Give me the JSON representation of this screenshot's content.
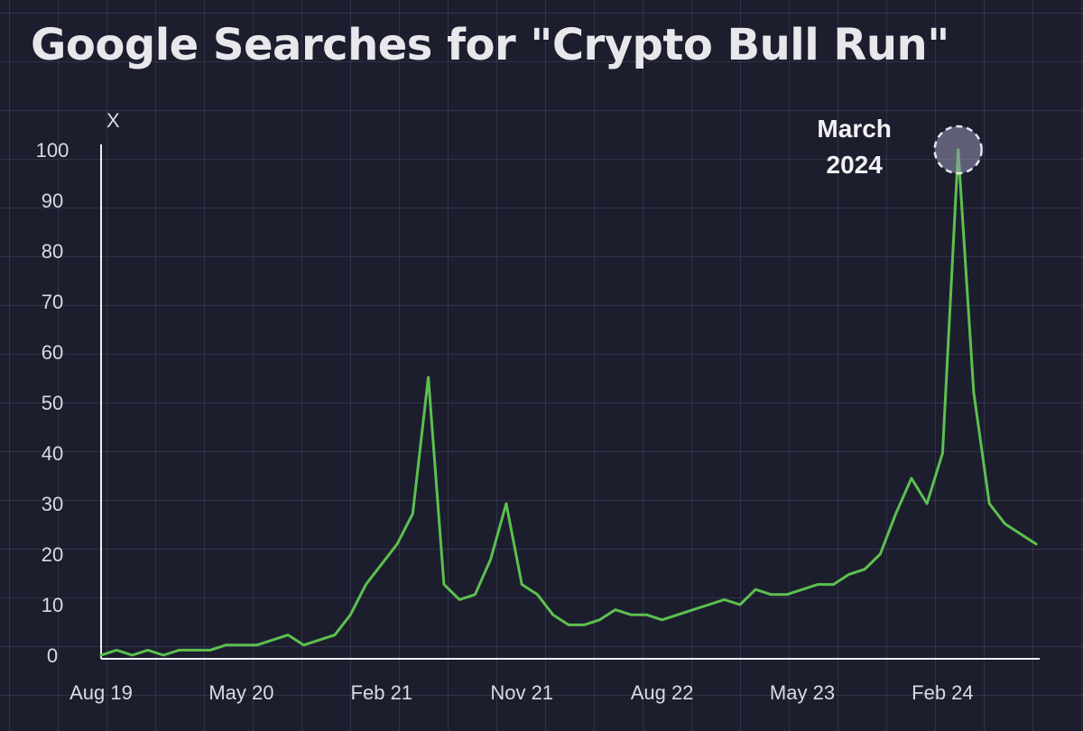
{
  "chart_data": {
    "type": "line",
    "title": "Google Searches for \"Crypto Bull Run\"",
    "ylabel": "X",
    "xlabel": "",
    "ylim": [
      0,
      100
    ],
    "yticks": [
      0,
      10,
      20,
      30,
      40,
      50,
      60,
      70,
      80,
      90,
      100
    ],
    "xlim": [
      "2019-08",
      "2024-08"
    ],
    "xticks": [
      {
        "label": "Aug 19",
        "x": "2019-08"
      },
      {
        "label": "May 20",
        "x": "2020-05"
      },
      {
        "label": "Feb 21",
        "x": "2021-02"
      },
      {
        "label": "Nov 21",
        "x": "2021-11"
      },
      {
        "label": "Aug 22",
        "x": "2022-08"
      },
      {
        "label": "May 23",
        "x": "2023-05"
      },
      {
        "label": "Feb 24",
        "x": "2024-02"
      }
    ],
    "grid": true,
    "color": "#5cc04e",
    "annotation": {
      "lines": [
        "March",
        "2024"
      ],
      "x": "2024-03",
      "y": 100
    },
    "series": [
      {
        "x": [
          "2019-08",
          "2019-09",
          "2019-10",
          "2019-11",
          "2019-12",
          "2020-01",
          "2020-02",
          "2020-03",
          "2020-04",
          "2020-05",
          "2020-06",
          "2020-07",
          "2020-08",
          "2020-09",
          "2020-10",
          "2020-11",
          "2020-12",
          "2021-01",
          "2021-02",
          "2021-03",
          "2021-04",
          "2021-05",
          "2021-06",
          "2021-07",
          "2021-08",
          "2021-09",
          "2021-10",
          "2021-11",
          "2021-12",
          "2022-01",
          "2022-02",
          "2022-03",
          "2022-04",
          "2022-05",
          "2022-06",
          "2022-07",
          "2022-08",
          "2022-09",
          "2022-10",
          "2022-11",
          "2022-12",
          "2023-01",
          "2023-02",
          "2023-03",
          "2023-04",
          "2023-05",
          "2023-06",
          "2023-07",
          "2023-08",
          "2023-09",
          "2023-10",
          "2023-11",
          "2023-12",
          "2024-01",
          "2024-02",
          "2024-03",
          "2024-04",
          "2024-05",
          "2024-06",
          "2024-07",
          "2024-08"
        ],
        "values": [
          0,
          1,
          0,
          1,
          0,
          1,
          1,
          1,
          2,
          2,
          2,
          3,
          4,
          2,
          3,
          4,
          8,
          14,
          18,
          22,
          28,
          55,
          14,
          11,
          12,
          19,
          30,
          14,
          12,
          8,
          6,
          6,
          7,
          9,
          8,
          8,
          7,
          8,
          9,
          10,
          11,
          10,
          13,
          12,
          12,
          13,
          14,
          14,
          16,
          17,
          20,
          28,
          35,
          30,
          40,
          100,
          52,
          30,
          26,
          24,
          22
        ]
      }
    ]
  }
}
